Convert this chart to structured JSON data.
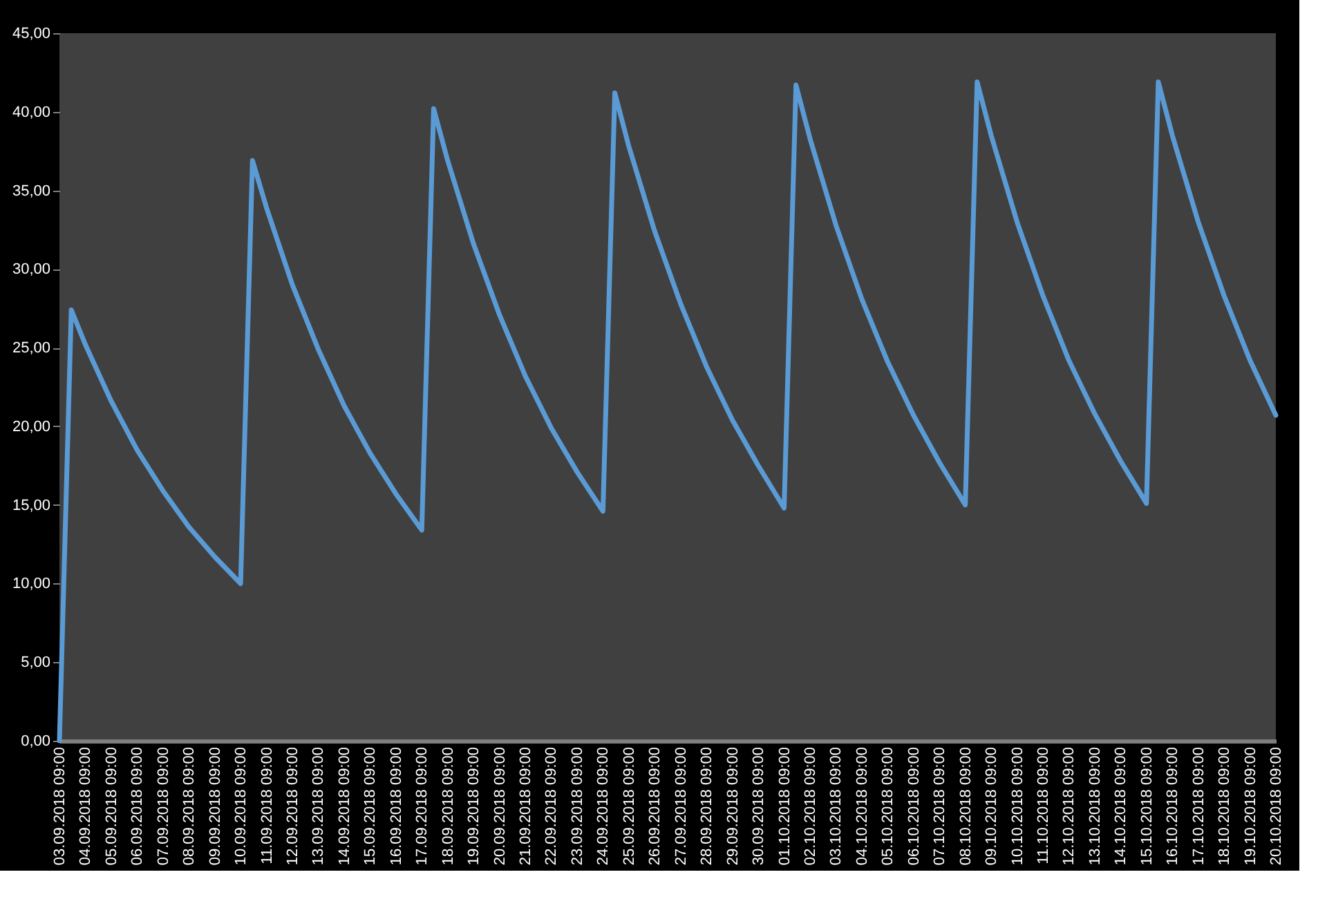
{
  "chart_data": {
    "type": "line",
    "x": [
      "2018-09-03T09:00",
      "2018-09-03T20:00",
      "2018-09-04T09:00",
      "2018-09-05T09:00",
      "2018-09-06T09:00",
      "2018-09-07T09:00",
      "2018-09-08T09:00",
      "2018-09-09T09:00",
      "2018-09-10T09:00",
      "2018-09-10T20:00",
      "2018-09-11T09:00",
      "2018-09-12T09:00",
      "2018-09-13T09:00",
      "2018-09-14T09:00",
      "2018-09-15T09:00",
      "2018-09-16T09:00",
      "2018-09-17T09:00",
      "2018-09-17T20:00",
      "2018-09-18T09:00",
      "2018-09-19T09:00",
      "2018-09-20T09:00",
      "2018-09-21T09:00",
      "2018-09-22T09:00",
      "2018-09-23T09:00",
      "2018-09-24T09:00",
      "2018-09-24T20:00",
      "2018-09-25T09:00",
      "2018-09-26T09:00",
      "2018-09-27T09:00",
      "2018-09-28T09:00",
      "2018-09-29T09:00",
      "2018-09-30T09:00",
      "2018-10-01T09:00",
      "2018-10-01T20:00",
      "2018-10-02T09:00",
      "2018-10-03T09:00",
      "2018-10-04T09:00",
      "2018-10-05T09:00",
      "2018-10-06T09:00",
      "2018-10-07T09:00",
      "2018-10-08T09:00",
      "2018-10-08T20:00",
      "2018-10-09T09:00",
      "2018-10-10T09:00",
      "2018-10-11T09:00",
      "2018-10-12T09:00",
      "2018-10-13T09:00",
      "2018-10-14T09:00",
      "2018-10-15T09:00",
      "2018-10-15T20:00",
      "2018-10-16T09:00",
      "2018-10-17T09:00",
      "2018-10-18T09:00",
      "2018-10-19T09:00",
      "2018-10-20T09:00"
    ],
    "series": [
      {
        "color": "#5b9bd5",
        "values": [
          0,
          27.4,
          25.2,
          21.6,
          18.5,
          15.9,
          13.6,
          11.7,
          10.0,
          36.9,
          33.9,
          29.0,
          24.9,
          21.3,
          18.3,
          15.7,
          13.4,
          40.2,
          36.9,
          31.6,
          27.1,
          23.2,
          19.9,
          17.1,
          14.6,
          41.2,
          37.8,
          32.4,
          27.8,
          23.8,
          20.4,
          17.5,
          14.8,
          41.7,
          38.3,
          32.8,
          28.1,
          24.1,
          20.7,
          17.7,
          15.0,
          41.9,
          38.5,
          33.0,
          28.3,
          24.2,
          20.8,
          17.8,
          15.1,
          41.9,
          38.5,
          33.0,
          28.3,
          24.2,
          20.7
        ]
      }
    ],
    "xlim": [
      "2018-09-03T09:00",
      "2018-10-20T09:00"
    ],
    "xticks": [
      {
        "value": "2018-09-03T09:00",
        "label": "03.09.2018 09:00"
      },
      {
        "value": "2018-09-04T09:00",
        "label": "04.09.2018 09:00"
      },
      {
        "value": "2018-09-05T09:00",
        "label": "05.09.2018 09:00"
      },
      {
        "value": "2018-09-06T09:00",
        "label": "06.09.2018 09:00"
      },
      {
        "value": "2018-09-07T09:00",
        "label": "07.09.2018 09:00"
      },
      {
        "value": "2018-09-08T09:00",
        "label": "08.09.2018 09:00"
      },
      {
        "value": "2018-09-09T09:00",
        "label": "09.09.2018 09:00"
      },
      {
        "value": "2018-09-10T09:00",
        "label": "10.09.2018 09:00"
      },
      {
        "value": "2018-09-11T09:00",
        "label": "11.09.2018 09:00"
      },
      {
        "value": "2018-09-12T09:00",
        "label": "12.09.2018 09:00"
      },
      {
        "value": "2018-09-13T09:00",
        "label": "13.09.2018 09:00"
      },
      {
        "value": "2018-09-14T09:00",
        "label": "14.09.2018 09:00"
      },
      {
        "value": "2018-09-15T09:00",
        "label": "15.09.2018 09:00"
      },
      {
        "value": "2018-09-16T09:00",
        "label": "16.09.2018 09:00"
      },
      {
        "value": "2018-09-17T09:00",
        "label": "17.09.2018 09:00"
      },
      {
        "value": "2018-09-18T09:00",
        "label": "18.09.2018 09:00"
      },
      {
        "value": "2018-09-19T09:00",
        "label": "19.09.2018 09:00"
      },
      {
        "value": "2018-09-20T09:00",
        "label": "20.09.2018 09:00"
      },
      {
        "value": "2018-09-21T09:00",
        "label": "21.09.2018 09:00"
      },
      {
        "value": "2018-09-22T09:00",
        "label": "22.09.2018 09:00"
      },
      {
        "value": "2018-09-23T09:00",
        "label": "23.09.2018 09:00"
      },
      {
        "value": "2018-09-24T09:00",
        "label": "24.09.2018 09:00"
      },
      {
        "value": "2018-09-25T09:00",
        "label": "25.09.2018 09:00"
      },
      {
        "value": "2018-09-26T09:00",
        "label": "26.09.2018 09:00"
      },
      {
        "value": "2018-09-27T09:00",
        "label": "27.09.2018 09:00"
      },
      {
        "value": "2018-09-28T09:00",
        "label": "28.09.2018 09:00"
      },
      {
        "value": "2018-09-29T09:00",
        "label": "29.09.2018 09:00"
      },
      {
        "value": "2018-09-30T09:00",
        "label": "30.09.2018 09:00"
      },
      {
        "value": "2018-10-01T09:00",
        "label": "01.10.2018 09:00"
      },
      {
        "value": "2018-10-02T09:00",
        "label": "02.10.2018 09:00"
      },
      {
        "value": "2018-10-03T09:00",
        "label": "03.10.2018 09:00"
      },
      {
        "value": "2018-10-04T09:00",
        "label": "04.10.2018 09:00"
      },
      {
        "value": "2018-10-05T09:00",
        "label": "05.10.2018 09:00"
      },
      {
        "value": "2018-10-06T09:00",
        "label": "06.10.2018 09:00"
      },
      {
        "value": "2018-10-07T09:00",
        "label": "07.10.2018 09:00"
      },
      {
        "value": "2018-10-08T09:00",
        "label": "08.10.2018 09:00"
      },
      {
        "value": "2018-10-09T09:00",
        "label": "09.10.2018 09:00"
      },
      {
        "value": "2018-10-10T09:00",
        "label": "10.10.2018 09:00"
      },
      {
        "value": "2018-10-11T09:00",
        "label": "11.10.2018 09:00"
      },
      {
        "value": "2018-10-12T09:00",
        "label": "12.10.2018 09:00"
      },
      {
        "value": "2018-10-13T09:00",
        "label": "13.10.2018 09:00"
      },
      {
        "value": "2018-10-14T09:00",
        "label": "14.10.2018 09:00"
      },
      {
        "value": "2018-10-15T09:00",
        "label": "15.10.2018 09:00"
      },
      {
        "value": "2018-10-16T09:00",
        "label": "16.10.2018 09:00"
      },
      {
        "value": "2018-10-17T09:00",
        "label": "17.10.2018 09:00"
      },
      {
        "value": "2018-10-18T09:00",
        "label": "18.10.2018 09:00"
      },
      {
        "value": "2018-10-19T09:00",
        "label": "19.10.2018 09:00"
      },
      {
        "value": "2018-10-20T09:00",
        "label": "20.10.2018 09:00"
      }
    ],
    "ylim": [
      0,
      45
    ],
    "yticks": [
      {
        "value": 0,
        "label": "0,00"
      },
      {
        "value": 5,
        "label": "5,00"
      },
      {
        "value": 10,
        "label": "10,00"
      },
      {
        "value": 15,
        "label": "15,00"
      },
      {
        "value": 20,
        "label": "20,00"
      },
      {
        "value": 25,
        "label": "25,00"
      },
      {
        "value": 30,
        "label": "30,00"
      },
      {
        "value": 35,
        "label": "35,00"
      },
      {
        "value": 40,
        "label": "40,00"
      },
      {
        "value": 45,
        "label": "45,00"
      }
    ],
    "grid": false,
    "marker": "none",
    "line_style": "solid"
  }
}
